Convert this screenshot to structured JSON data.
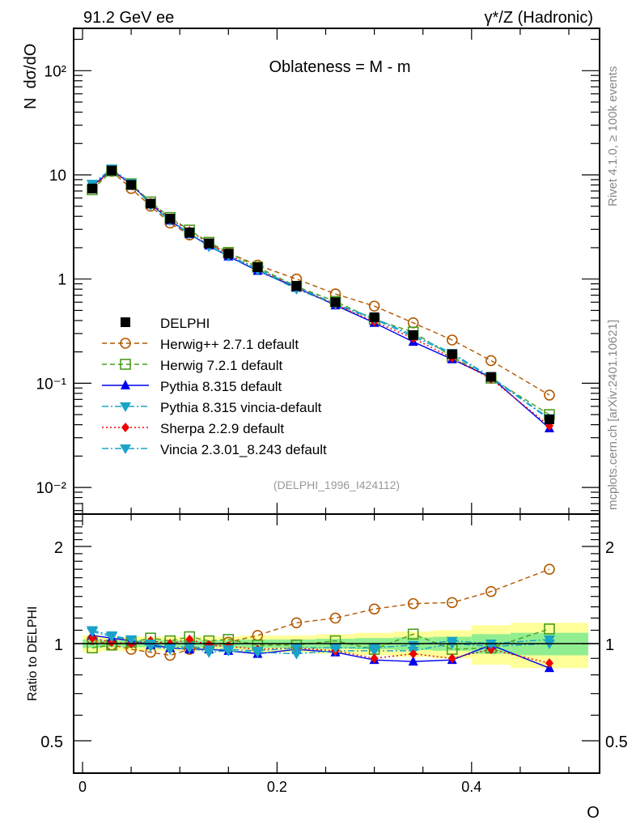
{
  "header": {
    "left_label": "91.2 GeV ee",
    "right_label": "γ*/Z (Hadronic)"
  },
  "side_labels": {
    "rivet": "Rivet 4.1.0, ≥ 100k events",
    "mcplots": "mcplots.cern.ch [arXiv:2401.10621]"
  },
  "chart_data": [
    {
      "type": "line",
      "panel": "main",
      "title": "Oblateness = M - m",
      "ylabel": "N  dσ/dO",
      "xlabel": "O",
      "yscale": "log",
      "ylim": [
        0.0045,
        250
      ],
      "xlim": [
        -0.005,
        0.53
      ],
      "watermark": "(DELPHI_1996_I424112)",
      "legend_position": "center-left",
      "yticks": [
        {
          "v": 0.01,
          "label": "10⁻²"
        },
        {
          "v": 0.1,
          "label": "10⁻¹"
        },
        {
          "v": 1,
          "label": "1"
        },
        {
          "v": 10,
          "label": "10"
        },
        {
          "v": 100,
          "label": "10²"
        }
      ],
      "x": [
        0.01,
        0.03,
        0.05,
        0.07,
        0.09,
        0.11,
        0.13,
        0.15,
        0.18,
        0.22,
        0.26,
        0.3,
        0.34,
        0.38,
        0.42,
        0.48
      ],
      "series": [
        {
          "name": "DELPHI",
          "color": "#000000",
          "marker": "square-filled",
          "line": "none",
          "values": [
            7.4,
            11.0,
            8.0,
            5.3,
            3.8,
            2.8,
            2.2,
            1.75,
            1.3,
            0.86,
            0.6,
            0.43,
            0.29,
            0.19,
            0.115,
            0.045
          ]
        },
        {
          "name": "Herwig++ 2.7.1 default",
          "color": "#b35900",
          "marker": "circle-open",
          "line": "dashed",
          "values": [
            7.6,
            10.8,
            7.4,
            5.0,
            3.45,
            2.65,
            2.15,
            1.78,
            1.36,
            1.0,
            0.72,
            0.55,
            0.38,
            0.26,
            0.165,
            0.077
          ]
        },
        {
          "name": "Herwig 7.2.1 default",
          "color": "#4b9b1e",
          "marker": "square-open",
          "line": "dashed",
          "values": [
            7.2,
            10.9,
            8.2,
            5.5,
            3.9,
            2.95,
            2.25,
            1.8,
            1.3,
            0.85,
            0.61,
            0.41,
            0.31,
            0.18,
            0.112,
            0.05
          ]
        },
        {
          "name": "Pythia 8.315 default",
          "color": "#0000ee",
          "marker": "triangle-up",
          "line": "solid",
          "values": [
            7.8,
            11.2,
            8.1,
            5.3,
            3.65,
            2.7,
            2.1,
            1.65,
            1.2,
            0.83,
            0.56,
            0.38,
            0.25,
            0.17,
            0.114,
            0.037
          ]
        },
        {
          "name": "Pythia 8.315 vincia-default",
          "color": "#1aa3c8",
          "marker": "triangle-down",
          "line": "dashdot",
          "values": [
            8.2,
            11.5,
            8.3,
            5.1,
            3.65,
            2.7,
            2.05,
            1.66,
            1.22,
            0.8,
            0.57,
            0.41,
            0.28,
            0.19,
            0.113,
            0.045
          ]
        },
        {
          "name": "Sherpa 2.2.9 default",
          "color": "#ee0000",
          "marker": "diamond",
          "line": "dotted",
          "values": [
            7.7,
            11.1,
            8.0,
            5.4,
            3.8,
            2.9,
            2.2,
            1.72,
            1.25,
            0.83,
            0.57,
            0.39,
            0.27,
            0.175,
            0.11,
            0.039
          ]
        },
        {
          "name": "Vincia 2.3.01_8.243 default",
          "color": "#1aa3c8",
          "marker": "triangle-down",
          "line": "dashdot",
          "values": [
            8.1,
            11.4,
            8.2,
            5.2,
            3.7,
            2.75,
            2.1,
            1.68,
            1.25,
            0.84,
            0.58,
            0.42,
            0.29,
            0.195,
            0.115,
            0.046
          ]
        }
      ]
    },
    {
      "type": "line",
      "panel": "ratio",
      "ylabel": "Ratio to DELPHI",
      "xlabel": "O",
      "yscale": "log",
      "ylim": [
        0.4,
        2.5
      ],
      "yticks": [
        {
          "v": 0.5,
          "label": "0.5"
        },
        {
          "v": 1,
          "label": "1"
        },
        {
          "v": 2,
          "label": "2"
        }
      ],
      "xticks": [
        {
          "v": 0,
          "label": "0"
        },
        {
          "v": 0.2,
          "label": "0.2"
        },
        {
          "v": 0.4,
          "label": "0.4"
        }
      ],
      "x": [
        0.01,
        0.03,
        0.05,
        0.07,
        0.09,
        0.11,
        0.13,
        0.15,
        0.18,
        0.22,
        0.26,
        0.3,
        0.34,
        0.38,
        0.42,
        0.48
      ],
      "x_edges": [
        0.0,
        0.02,
        0.04,
        0.06,
        0.08,
        0.1,
        0.12,
        0.14,
        0.16,
        0.2,
        0.24,
        0.28,
        0.32,
        0.36,
        0.4,
        0.44,
        0.52
      ],
      "band_rel_unc": [
        0.03,
        0.025,
        0.025,
        0.025,
        0.025,
        0.025,
        0.025,
        0.025,
        0.03,
        0.03,
        0.035,
        0.04,
        0.045,
        0.05,
        0.07,
        0.08
      ],
      "series": [
        {
          "name": "Herwig++ 2.7.1 default",
          "color": "#b35900",
          "marker": "circle-open",
          "line": "dashed",
          "values": [
            1.03,
            0.99,
            0.96,
            0.94,
            0.92,
            0.96,
            0.98,
            1.01,
            1.06,
            1.16,
            1.2,
            1.28,
            1.33,
            1.34,
            1.45,
            1.7
          ]
        },
        {
          "name": "Herwig 7.2.1 default",
          "color": "#4b9b1e",
          "marker": "square-open",
          "line": "dashed",
          "values": [
            0.97,
            0.99,
            1.01,
            1.04,
            1.02,
            1.05,
            1.02,
            1.03,
            0.99,
            0.99,
            1.02,
            0.96,
            1.07,
            0.96,
            0.97,
            1.11
          ]
        },
        {
          "name": "Pythia 8.315 default",
          "color": "#0000ee",
          "marker": "triangle-up",
          "line": "solid",
          "values": [
            1.06,
            1.04,
            1.02,
            0.99,
            0.97,
            0.96,
            0.96,
            0.95,
            0.93,
            0.96,
            0.94,
            0.89,
            0.88,
            0.89,
            0.99,
            0.84
          ]
        },
        {
          "name": "Pythia 8.315 vincia-default",
          "color": "#1aa3c8",
          "marker": "triangle-down",
          "line": "dashdot",
          "values": [
            1.1,
            1.06,
            1.03,
            0.98,
            0.96,
            0.97,
            0.94,
            0.95,
            0.94,
            0.93,
            0.95,
            0.95,
            0.95,
            1.0,
            0.98,
            1.0
          ]
        },
        {
          "name": "Sherpa 2.2.9 default",
          "color": "#ee0000",
          "marker": "diamond",
          "line": "dotted",
          "values": [
            1.04,
            1.01,
            1.0,
            1.02,
            1.0,
            1.03,
            0.99,
            0.98,
            0.96,
            0.97,
            0.95,
            0.9,
            0.93,
            0.9,
            0.96,
            0.87
          ]
        },
        {
          "name": "Vincia 2.3.01_8.243 default",
          "color": "#1aa3c8",
          "marker": "triangle-down",
          "line": "dashdot",
          "values": [
            1.09,
            1.05,
            1.03,
            1.0,
            0.97,
            0.98,
            0.96,
            0.96,
            0.95,
            0.97,
            0.97,
            0.97,
            0.99,
            1.02,
            1.0,
            1.03
          ]
        }
      ]
    }
  ]
}
